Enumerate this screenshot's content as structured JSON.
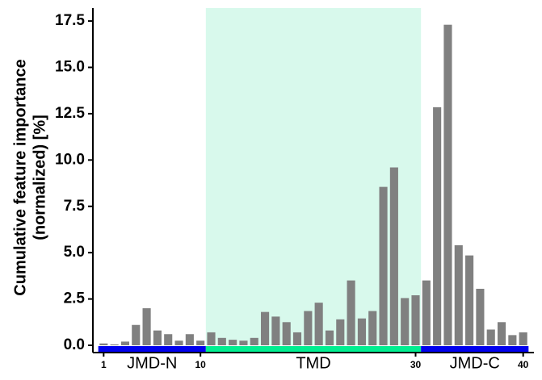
{
  "chart_data": {
    "type": "bar",
    "ylabel": [
      "Cumulative feature importance",
      "(normalized) [%]"
    ],
    "x": [
      1,
      2,
      3,
      4,
      5,
      6,
      7,
      8,
      9,
      10,
      11,
      12,
      13,
      14,
      15,
      16,
      17,
      18,
      19,
      20,
      21,
      22,
      23,
      24,
      25,
      26,
      27,
      28,
      29,
      30,
      31,
      32,
      33,
      34,
      35,
      36,
      37,
      38,
      39,
      40
    ],
    "values": [
      0.1,
      0.05,
      0.2,
      1.1,
      2.0,
      0.8,
      0.6,
      0.25,
      0.6,
      0.25,
      0.7,
      0.4,
      0.3,
      0.25,
      0.4,
      1.8,
      1.55,
      1.25,
      0.7,
      1.85,
      2.3,
      0.8,
      1.4,
      3.5,
      1.45,
      1.85,
      8.55,
      9.6,
      2.55,
      2.7,
      3.5,
      12.85,
      17.3,
      5.4,
      4.85,
      3.05,
      0.85,
      1.25,
      0.55,
      0.7
    ],
    "color": "#808080",
    "xlim": [
      0,
      41
    ],
    "xticks": [
      1,
      10,
      30,
      40
    ],
    "ylim": [
      0,
      18.2
    ],
    "yticks": [
      {
        "value": 0,
        "label": "0.0"
      },
      {
        "value": 2.5,
        "label": "2.5"
      },
      {
        "value": 5,
        "label": "5.0"
      },
      {
        "value": 7.5,
        "label": "7.5"
      },
      {
        "value": 10,
        "label": "10.0"
      },
      {
        "value": 12.5,
        "label": "12.5"
      },
      {
        "value": 15,
        "label": "15.0"
      },
      {
        "value": 17.5,
        "label": "17.5"
      }
    ],
    "regions": [
      {
        "label": "JMD-N",
        "start": 0.5,
        "end": 10.5,
        "color": "#0000ee"
      },
      {
        "label": "TMD",
        "start": 10.5,
        "end": 30.5,
        "color": "#00ee90",
        "shade": "#d8f9ec"
      },
      {
        "label": "JMD-C",
        "start": 30.5,
        "end": 40.5,
        "color": "#0000ee"
      }
    ]
  }
}
